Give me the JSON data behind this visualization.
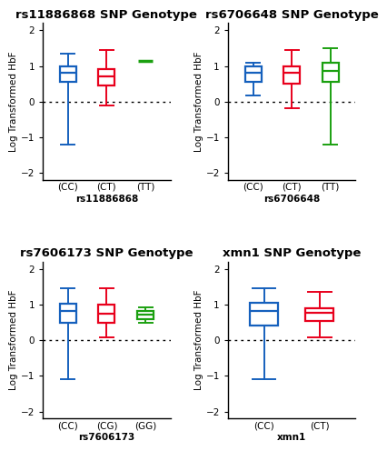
{
  "plots": [
    {
      "title": "rs11886868 SNP Genotype",
      "xlabel": "rs11886868",
      "ylabel": "Log Transformed HbF",
      "ylim": [
        -2.2,
        2.2
      ],
      "yticks": [
        -2,
        -1,
        0,
        1,
        2
      ],
      "boxes": [
        {
          "label": "(CC)",
          "color": "#1560BD",
          "q1": 0.55,
          "median": 0.82,
          "q3": 1.0,
          "whisker_low": -1.2,
          "whisker_high": 1.35,
          "is_line_only": false
        },
        {
          "label": "(CT)",
          "color": "#E8001C",
          "q1": 0.45,
          "median": 0.72,
          "q3": 0.92,
          "whisker_low": -0.12,
          "whisker_high": 1.45,
          "is_line_only": false
        },
        {
          "label": "(TT)",
          "color": "#1BA010",
          "q1": 1.15,
          "median": 1.15,
          "q3": 1.15,
          "whisker_low": 1.15,
          "whisker_high": 1.15,
          "is_line_only": true
        }
      ]
    },
    {
      "title": "rs6706648 SNP Genotype",
      "xlabel": "rs6706648",
      "ylabel": "Log Transformed HbF",
      "ylim": [
        -2.2,
        2.2
      ],
      "yticks": [
        -2,
        -1,
        0,
        1,
        2
      ],
      "boxes": [
        {
          "label": "(CC)",
          "color": "#1560BD",
          "q1": 0.55,
          "median": 0.82,
          "q3": 1.0,
          "whisker_low": 0.18,
          "whisker_high": 1.1,
          "is_line_only": false
        },
        {
          "label": "(CT)",
          "color": "#E8001C",
          "q1": 0.5,
          "median": 0.82,
          "q3": 1.0,
          "whisker_low": -0.18,
          "whisker_high": 1.45,
          "is_line_only": false
        },
        {
          "label": "(TT)",
          "color": "#1BA010",
          "q1": 0.55,
          "median": 0.85,
          "q3": 1.08,
          "whisker_low": -1.2,
          "whisker_high": 1.5,
          "is_line_only": false
        }
      ]
    },
    {
      "title": "rs7606173 SNP Genotype",
      "xlabel": "rs7606173",
      "ylabel": "Log Transformed HbF",
      "ylim": [
        -2.2,
        2.2
      ],
      "yticks": [
        -2,
        -1,
        0,
        1,
        2
      ],
      "boxes": [
        {
          "label": "(CC)",
          "color": "#1560BD",
          "q1": 0.5,
          "median": 0.82,
          "q3": 1.02,
          "whisker_low": -1.1,
          "whisker_high": 1.45,
          "is_line_only": false
        },
        {
          "label": "(CG)",
          "color": "#E8001C",
          "q1": 0.5,
          "median": 0.75,
          "q3": 1.0,
          "whisker_low": 0.08,
          "whisker_high": 1.45,
          "is_line_only": false
        },
        {
          "label": "(GG)",
          "color": "#1BA010",
          "q1": 0.6,
          "median": 0.72,
          "q3": 0.82,
          "whisker_low": 0.5,
          "whisker_high": 0.92,
          "is_line_only": false
        }
      ]
    },
    {
      "title": "xmn1 SNP Genotype",
      "xlabel": "xmn1",
      "ylabel": "Log Transformed HbF",
      "ylim": [
        -2.2,
        2.2
      ],
      "yticks": [
        -2,
        -1,
        0,
        1,
        2
      ],
      "boxes": [
        {
          "label": "(CC)",
          "color": "#1560BD",
          "q1": 0.42,
          "median": 0.82,
          "q3": 1.05,
          "whisker_low": -1.1,
          "whisker_high": 1.45,
          "is_line_only": false
        },
        {
          "label": "(CT)",
          "color": "#E8001C",
          "q1": 0.55,
          "median": 0.78,
          "q3": 0.9,
          "whisker_low": 0.08,
          "whisker_high": 1.35,
          "is_line_only": false
        }
      ]
    }
  ],
  "background_color": "#ffffff",
  "title_fontsize": 9.5,
  "label_fontsize": 7.5,
  "tick_fontsize": 7.5
}
